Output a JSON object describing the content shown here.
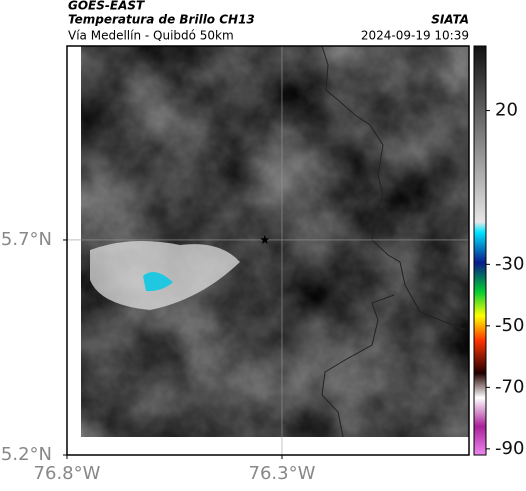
{
  "header": {
    "satellite": "GOES-EAST",
    "product": "Temperatura de Brillo CH13",
    "source": "SIATA",
    "region": "Vía Medellín - Quibdó 50km",
    "timestamp": "2024-09-19 10:39"
  },
  "map": {
    "xlim": [
      -76.8,
      -75.865
    ],
    "ylim": [
      5.2,
      6.151
    ],
    "xticks": [
      {
        "value": -76.8,
        "label": "76.8°W"
      },
      {
        "value": -76.3,
        "label": "76.3°W"
      }
    ],
    "yticks": [
      {
        "value": 5.2,
        "label": "5.2°N"
      },
      {
        "value": 5.7,
        "label": "5.7°N"
      }
    ],
    "grid": true,
    "marker": {
      "lon": -76.34,
      "lat": 5.7
    }
  },
  "colorbar": {
    "clim": [
      -92,
      41
    ],
    "ticks": [
      20,
      -30,
      -50,
      -70,
      -90
    ]
  }
}
